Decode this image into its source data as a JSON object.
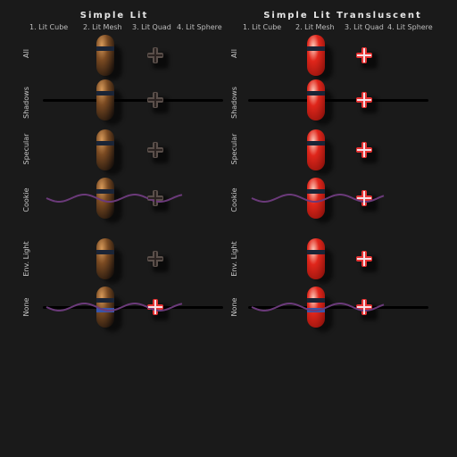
{
  "panels": [
    {
      "title": "Simple Lit",
      "columns": [
        "1. Lit Cube",
        "2. Lit Mesh",
        "3. Lit Quad",
        "4. Lit Sphere"
      ]
    },
    {
      "title": "Simple Lit Transluscent",
      "columns": [
        "1. Lit Cube",
        "2. Lit Mesh",
        "3. Lit Quad",
        "4. Lit Sphere"
      ]
    }
  ],
  "rows": [
    "All",
    "Shadows",
    "Specular",
    "Cookie",
    "Env. Light",
    "None"
  ],
  "colors": {
    "background": "#1a1a1a",
    "wave": "#6b3a7a",
    "opaque_pill": "#7a4a22",
    "translucent_pill": "#e0261b",
    "cross_dark": "#5a4f4a",
    "cross_red": "#e63232"
  }
}
